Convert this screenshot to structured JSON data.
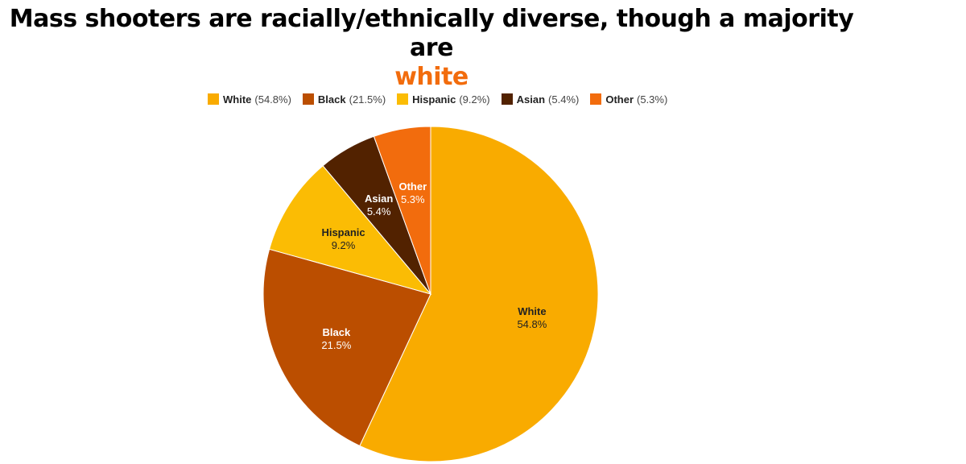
{
  "title": {
    "main": "Mass shooters are racially/ethnically diverse, though a majority are",
    "highlight": "white",
    "highlight_color": "#f26c0d"
  },
  "chart_data": {
    "type": "pie",
    "title": "Mass shooters are racially/ethnically diverse, though a majority are white",
    "legend_position": "top",
    "start_angle": "12 o'clock",
    "direction": "clockwise",
    "slices": [
      {
        "label": "White",
        "value": 54.8,
        "display": "54.8%",
        "color": "#f9ab00",
        "label_color": "#222222"
      },
      {
        "label": "Black",
        "value": 21.5,
        "display": "21.5%",
        "color": "#bb4e00",
        "label_color": "#ffffff"
      },
      {
        "label": "Hispanic",
        "value": 9.2,
        "display": "9.2%",
        "color": "#fbbc04",
        "label_color": "#222222"
      },
      {
        "label": "Asian",
        "value": 5.4,
        "display": "5.4%",
        "color": "#522200",
        "label_color": "#ffffff"
      },
      {
        "label": "Other",
        "value": 5.3,
        "display": "5.3%",
        "color": "#f26c0d",
        "label_color": "#ffffff"
      }
    ]
  },
  "legend": [
    {
      "label": "White",
      "pct": "(54.8%)",
      "color": "#f9ab00"
    },
    {
      "label": "Black",
      "pct": "(21.5%)",
      "color": "#bb4e00"
    },
    {
      "label": "Hispanic",
      "pct": "(9.2%)",
      "color": "#fbbc04"
    },
    {
      "label": "Asian",
      "pct": "(5.4%)",
      "color": "#522200"
    },
    {
      "label": "Other",
      "pct": "(5.3%)",
      "color": "#f26c0d"
    }
  ]
}
